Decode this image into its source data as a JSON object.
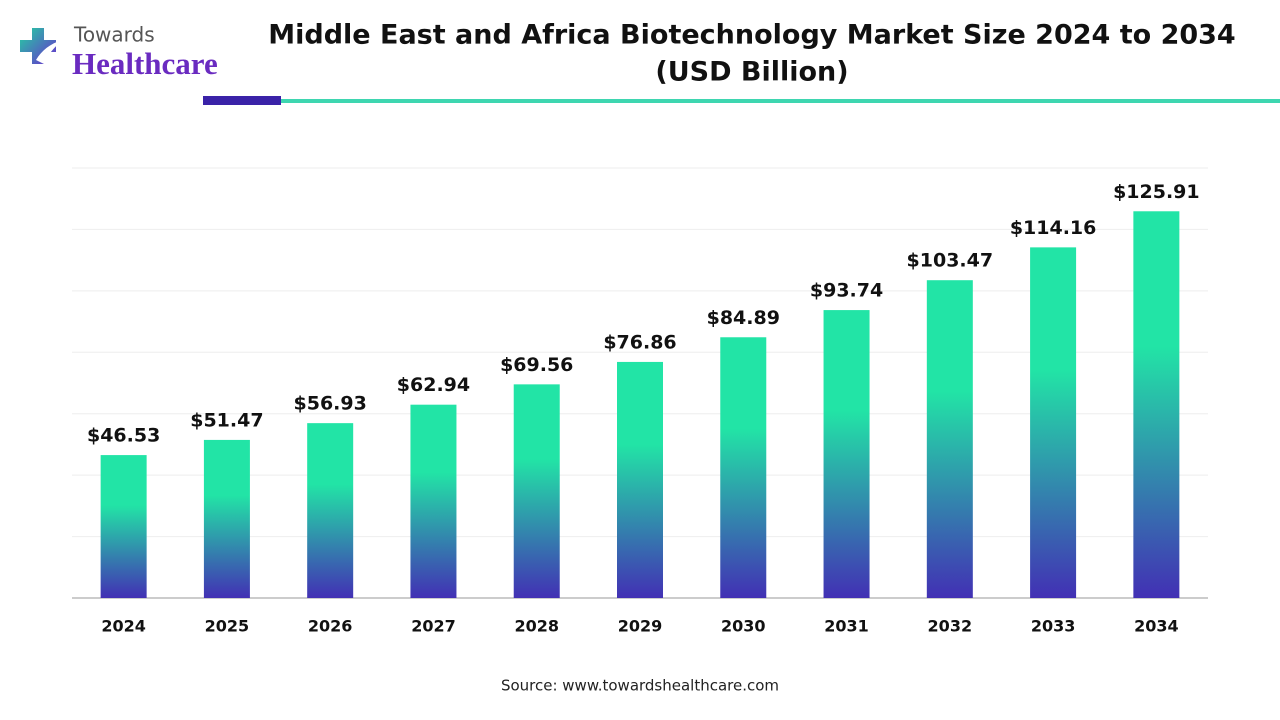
{
  "logo": {
    "line1": "Towards",
    "line2": "Healthcare"
  },
  "chart_data": {
    "type": "bar",
    "title": [
      "Middle East and Africa Biotechnology Market Size 2024 to 2034",
      "(USD Billion)"
    ],
    "categories": [
      "2024",
      "2025",
      "2026",
      "2027",
      "2028",
      "2029",
      "2030",
      "2031",
      "2032",
      "2033",
      "2034"
    ],
    "values": [
      46.53,
      51.47,
      56.93,
      62.94,
      69.56,
      76.86,
      84.89,
      93.74,
      103.47,
      114.16,
      125.91
    ],
    "value_labels": [
      "$46.53",
      "$51.47",
      "$56.93",
      "$62.94",
      "$69.56",
      "$76.86",
      "$84.89",
      "$93.74",
      "$103.47",
      "$114.16",
      "$125.91"
    ],
    "color": [
      "#22e4a6",
      "#4230b4"
    ],
    "ylim": [
      0,
      140
    ],
    "yticks": [
      0,
      20,
      40,
      60,
      80,
      100,
      120,
      140
    ],
    "grid": true,
    "source": "Source: www.towardshealthcare.com"
  }
}
